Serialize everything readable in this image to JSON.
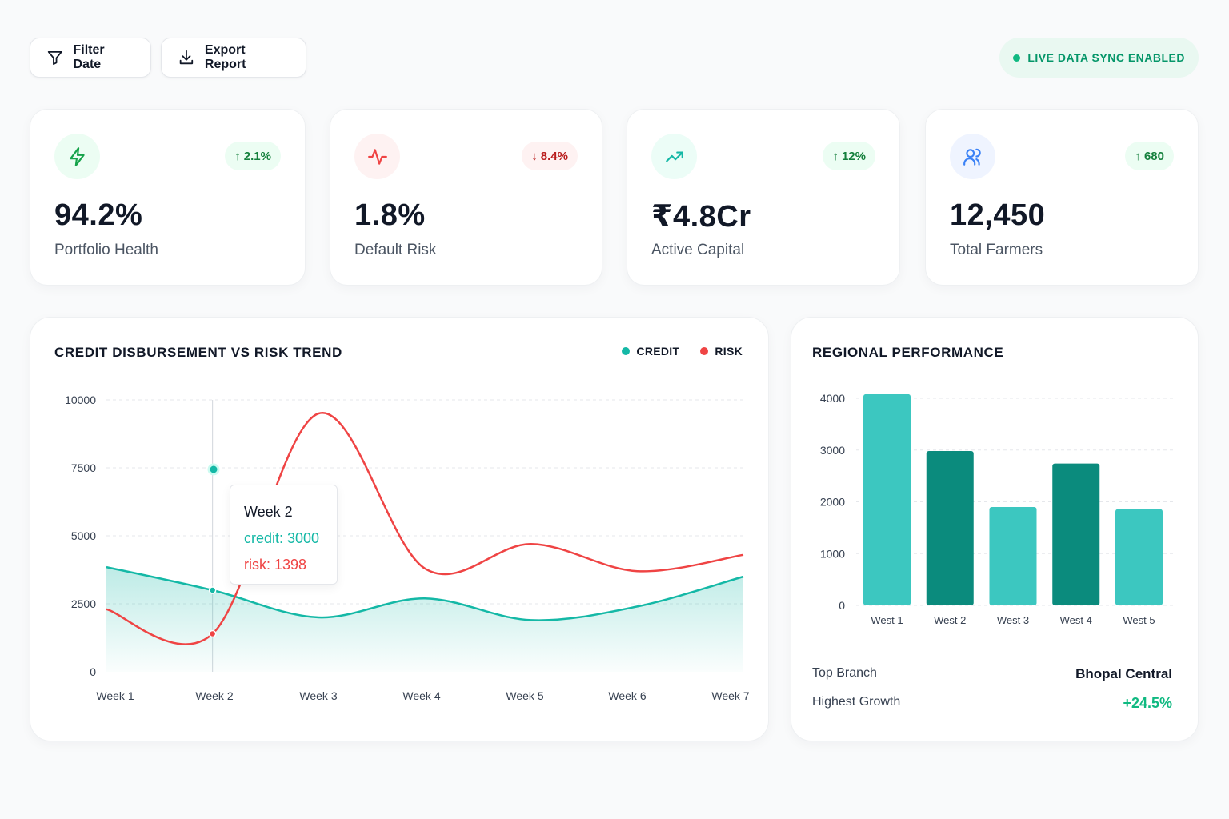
{
  "toolbar": {
    "filter_label": "Filter Date",
    "export_label": "Export Report",
    "live_label": "LIVE DATA SYNC ENABLED"
  },
  "kpis": [
    {
      "value": "94.2%",
      "label": "Portfolio Health",
      "delta": "2.1%",
      "direction": "up",
      "icon": "lightning-icon"
    },
    {
      "value": "1.8%",
      "label": "Default Risk",
      "delta": "8.4%",
      "direction": "down",
      "icon": "activity-icon"
    },
    {
      "value": "₹4.8Cr",
      "label": "Active Capital",
      "delta": "12%",
      "direction": "up",
      "icon": "trending-up-icon"
    },
    {
      "value": "12,450",
      "label": "Total Farmers",
      "delta": "680",
      "direction": "up",
      "icon": "users-icon"
    }
  ],
  "colors": {
    "credit": "#14b8a6",
    "risk": "#ef4444",
    "bar_light": "#3cc7c0",
    "bar_dark": "#0b8b7d"
  },
  "trend": {
    "title": "CREDIT DISBURSEMENT VS RISK TREND",
    "legend_credit": "CREDIT",
    "legend_risk": "RISK",
    "tooltip": {
      "week": "Week 2",
      "credit": "credit: 3000",
      "risk": "risk: 1398"
    }
  },
  "region": {
    "title": "REGIONAL PERFORMANCE",
    "top_branch_label": "Top Branch",
    "top_branch_value": "Bhopal Central",
    "growth_label": "Highest Growth",
    "growth_value": "+24.5%"
  },
  "chart_data": [
    {
      "type": "area",
      "title": "CREDIT DISBURSEMENT VS RISK TREND",
      "x": [
        "Week 1",
        "Week 2",
        "Week 3",
        "Week 4",
        "Week 5",
        "Week 6",
        "Week 7"
      ],
      "yticks": [
        0,
        2500,
        5000,
        7500,
        10000
      ],
      "ylim": [
        0,
        10000
      ],
      "grid": true,
      "legend": "top-right",
      "series": [
        {
          "name": "CREDIT",
          "values": [
            3850,
            3000,
            2000,
            2700,
            1900,
            2400,
            3500
          ]
        },
        {
          "name": "RISK",
          "values": [
            2300,
            1398,
            9500,
            3800,
            4700,
            3700,
            4300
          ]
        }
      ],
      "highlight": {
        "x": "Week 2",
        "credit": 3000,
        "risk": 1398
      }
    },
    {
      "type": "bar",
      "title": "REGIONAL PERFORMANCE",
      "categories": [
        "West 1",
        "West 2",
        "West 3",
        "West 4",
        "West 5"
      ],
      "values": [
        4080,
        2980,
        1900,
        2740,
        1860
      ],
      "yticks": [
        0,
        1000,
        2000,
        3000,
        4000
      ],
      "ylim": [
        0,
        4000
      ],
      "grid": true
    }
  ]
}
